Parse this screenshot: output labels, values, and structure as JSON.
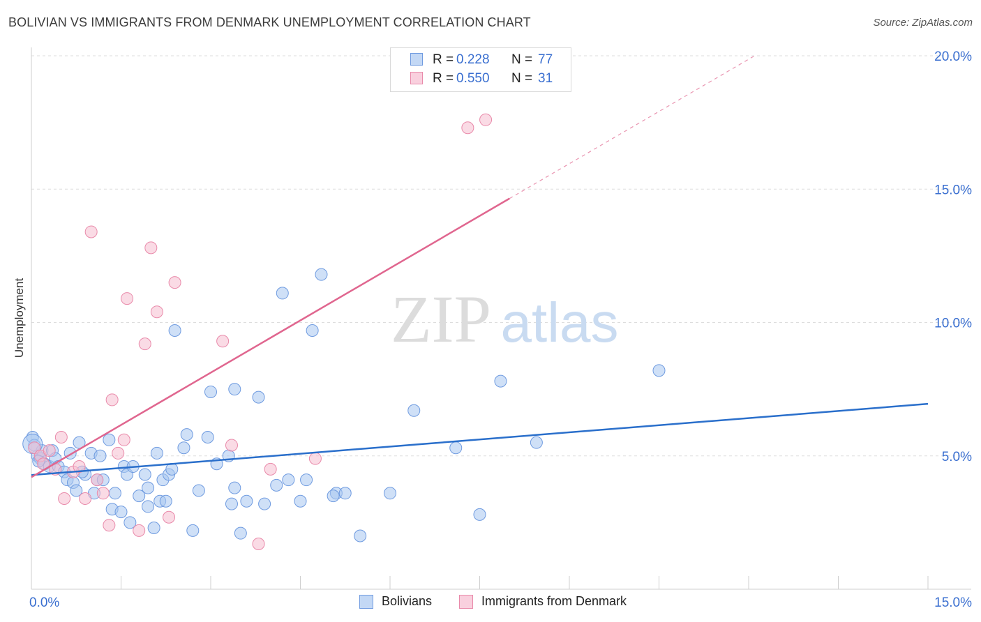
{
  "header": {
    "title": "BOLIVIAN VS IMMIGRANTS FROM DENMARK UNEMPLOYMENT CORRELATION CHART",
    "source": "Source: ZipAtlas.com"
  },
  "watermark": {
    "zip": "ZIP",
    "atlas": "atlas"
  },
  "legend": {
    "r_label": "R =",
    "n_label": "N =",
    "entries": [
      {
        "r": "0.228",
        "n": "77"
      },
      {
        "r": "0.550",
        "n": "31"
      }
    ]
  },
  "colors": {
    "blue_fill": "#a8c6f0",
    "blue_stroke": "#6f9be0",
    "blue_line": "#2a6fcb",
    "pink_fill": "#f6bdd0",
    "pink_stroke": "#e98aaa",
    "pink_line": "#e0668f",
    "grid": "#dddddd",
    "tick_label": "#3a6fd0"
  },
  "chart_data": {
    "type": "scatter",
    "title": "BOLIVIAN VS IMMIGRANTS FROM DENMARK UNEMPLOYMENT CORRELATION CHART",
    "xlabel": "",
    "ylabel": "Unemployment",
    "xlim": [
      0,
      15
    ],
    "ylim": [
      0,
      20
    ],
    "x_tick_labels": [
      {
        "value": 0,
        "label": "0.0%"
      },
      {
        "value": 15,
        "label": "15.0%"
      }
    ],
    "y_tick_labels": [
      {
        "value": 5,
        "label": "5.0%"
      },
      {
        "value": 10,
        "label": "10.0%"
      },
      {
        "value": 15,
        "label": "15.0%"
      },
      {
        "value": 20,
        "label": "20.0%"
      }
    ],
    "legend_position": "top-center",
    "series": [
      {
        "name": "Bolivians",
        "color": "#a8c6f0",
        "regression": {
          "x0": 0,
          "y0": 4.28,
          "x1": 15,
          "y1": 6.95
        },
        "points": [
          [
            0.02,
            5.7
          ],
          [
            0.05,
            5.4
          ],
          [
            0.1,
            5.0
          ],
          [
            0.15,
            4.9
          ],
          [
            0.18,
            5.2
          ],
          [
            0.22,
            4.7
          ],
          [
            0.3,
            4.6
          ],
          [
            0.35,
            5.2
          ],
          [
            0.4,
            4.9
          ],
          [
            0.45,
            4.6
          ],
          [
            0.55,
            4.4
          ],
          [
            0.6,
            4.1
          ],
          [
            0.65,
            5.1
          ],
          [
            0.7,
            4.0
          ],
          [
            0.75,
            3.7
          ],
          [
            0.8,
            5.5
          ],
          [
            0.9,
            4.3
          ],
          [
            1.0,
            5.1
          ],
          [
            1.05,
            3.6
          ],
          [
            1.1,
            4.1
          ],
          [
            1.15,
            5.0
          ],
          [
            1.2,
            4.1
          ],
          [
            1.3,
            5.6
          ],
          [
            1.35,
            3.0
          ],
          [
            1.4,
            3.6
          ],
          [
            1.5,
            2.9
          ],
          [
            1.55,
            4.6
          ],
          [
            1.6,
            4.3
          ],
          [
            1.65,
            2.5
          ],
          [
            1.7,
            4.6
          ],
          [
            1.8,
            3.5
          ],
          [
            1.9,
            4.3
          ],
          [
            1.95,
            3.1
          ],
          [
            2.05,
            2.3
          ],
          [
            2.1,
            5.1
          ],
          [
            2.15,
            3.3
          ],
          [
            2.2,
            4.1
          ],
          [
            2.3,
            4.3
          ],
          [
            2.35,
            4.5
          ],
          [
            2.4,
            9.7
          ],
          [
            2.55,
            5.3
          ],
          [
            2.6,
            5.8
          ],
          [
            2.7,
            2.2
          ],
          [
            2.8,
            3.7
          ],
          [
            2.95,
            5.7
          ],
          [
            3.0,
            7.4
          ],
          [
            3.1,
            4.7
          ],
          [
            3.3,
            5.0
          ],
          [
            3.4,
            3.8
          ],
          [
            3.5,
            2.1
          ],
          [
            3.6,
            3.3
          ],
          [
            3.8,
            7.2
          ],
          [
            3.9,
            3.2
          ],
          [
            4.1,
            3.9
          ],
          [
            4.2,
            11.1
          ],
          [
            4.3,
            4.1
          ],
          [
            4.5,
            3.3
          ],
          [
            4.6,
            4.1
          ],
          [
            4.7,
            9.7
          ],
          [
            4.85,
            11.8
          ],
          [
            5.1,
            3.6
          ],
          [
            5.25,
            3.6
          ],
          [
            5.5,
            2.0
          ],
          [
            6.0,
            3.6
          ],
          [
            6.4,
            6.7
          ],
          [
            7.1,
            5.3
          ],
          [
            7.5,
            2.8
          ],
          [
            7.85,
            7.8
          ],
          [
            8.45,
            5.5
          ],
          [
            10.5,
            8.2
          ],
          [
            3.4,
            7.5
          ],
          [
            1.95,
            3.8
          ],
          [
            0.85,
            4.4
          ],
          [
            3.35,
            3.2
          ],
          [
            5.05,
            3.5
          ],
          [
            2.25,
            3.3
          ],
          [
            0.12,
            4.8
          ]
        ]
      },
      {
        "name": "Immigrants from Denmark",
        "color": "#f6bdd0",
        "regression": {
          "x0": 0,
          "y0": 4.2,
          "x1": 8.0,
          "y1": 14.65,
          "dashed_to": {
            "x": 12.1,
            "y": 20.0
          }
        },
        "points": [
          [
            0.05,
            5.3
          ],
          [
            0.15,
            5.0
          ],
          [
            0.2,
            4.7
          ],
          [
            0.3,
            5.2
          ],
          [
            0.4,
            4.5
          ],
          [
            0.5,
            5.7
          ],
          [
            0.55,
            3.4
          ],
          [
            0.7,
            4.4
          ],
          [
            0.8,
            4.6
          ],
          [
            0.9,
            3.4
          ],
          [
            1.0,
            13.4
          ],
          [
            1.1,
            4.1
          ],
          [
            1.2,
            3.6
          ],
          [
            1.3,
            2.4
          ],
          [
            1.35,
            7.1
          ],
          [
            1.45,
            5.1
          ],
          [
            1.55,
            5.6
          ],
          [
            1.6,
            10.9
          ],
          [
            1.8,
            2.2
          ],
          [
            1.9,
            9.2
          ],
          [
            2.0,
            12.8
          ],
          [
            2.1,
            10.4
          ],
          [
            2.3,
            2.7
          ],
          [
            2.4,
            11.5
          ],
          [
            3.2,
            9.3
          ],
          [
            3.35,
            5.4
          ],
          [
            3.8,
            1.7
          ],
          [
            4.0,
            4.5
          ],
          [
            4.75,
            4.9
          ],
          [
            7.3,
            17.3
          ],
          [
            7.6,
            17.6
          ]
        ]
      }
    ]
  },
  "bottom_legend": {
    "items": [
      "Bolivians",
      "Immigrants from Denmark"
    ]
  }
}
